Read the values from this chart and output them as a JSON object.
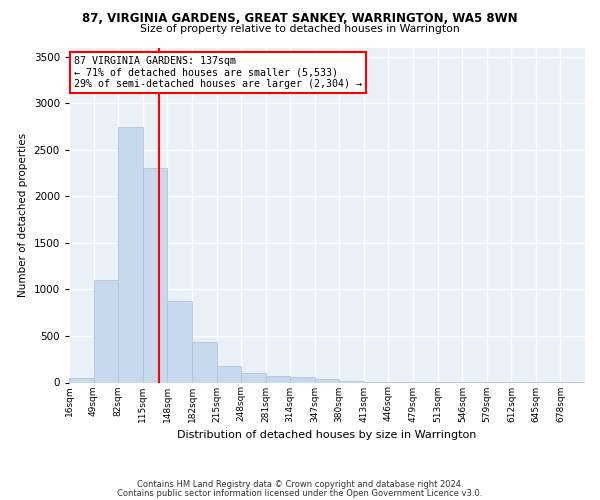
{
  "title": "87, VIRGINIA GARDENS, GREAT SANKEY, WARRINGTON, WA5 8WN",
  "subtitle": "Size of property relative to detached houses in Warrington",
  "xlabel": "Distribution of detached houses by size in Warrington",
  "ylabel": "Number of detached properties",
  "bar_color": "#c8d9ee",
  "bar_edgecolor": "#a8bedd",
  "background_color": "#eaf0f8",
  "grid_color": "#ffffff",
  "annotation_line1": "87 VIRGINIA GARDENS: 137sqm",
  "annotation_line2": "← 71% of detached houses are smaller (5,533)",
  "annotation_line3": "29% of semi-detached houses are larger (2,304) →",
  "vline_color": "red",
  "categories": [
    "16sqm",
    "49sqm",
    "82sqm",
    "115sqm",
    "148sqm",
    "182sqm",
    "215sqm",
    "248sqm",
    "281sqm",
    "314sqm",
    "347sqm",
    "380sqm",
    "413sqm",
    "446sqm",
    "479sqm",
    "513sqm",
    "546sqm",
    "579sqm",
    "612sqm",
    "645sqm",
    "678sqm"
  ],
  "values": [
    50,
    1105,
    2745,
    2300,
    880,
    430,
    175,
    100,
    75,
    55,
    35,
    20,
    10,
    5,
    3,
    2,
    1,
    1,
    1,
    1,
    1
  ],
  "bin_edges": [
    16,
    49,
    82,
    115,
    148,
    182,
    215,
    248,
    281,
    314,
    347,
    380,
    413,
    446,
    479,
    513,
    546,
    579,
    612,
    645,
    678,
    711
  ],
  "ylim": [
    0,
    3600
  ],
  "yticks": [
    0,
    500,
    1000,
    1500,
    2000,
    2500,
    3000,
    3500
  ],
  "footer_line1": "Contains HM Land Registry data © Crown copyright and database right 2024.",
  "footer_line2": "Contains public sector information licensed under the Open Government Licence v3.0.",
  "property_size": 137
}
